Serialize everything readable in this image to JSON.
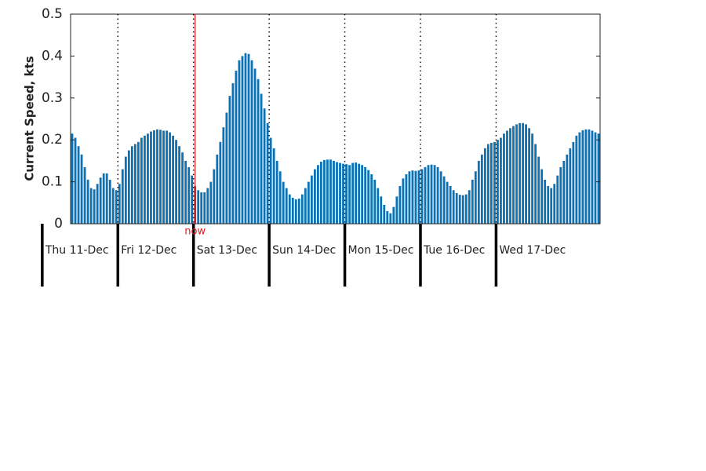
{
  "chart_data": {
    "type": "bar",
    "ylabel": "Current Speed, kts",
    "color": "#0b72b5",
    "values": [
      0.215,
      0.205,
      0.185,
      0.165,
      0.135,
      0.105,
      0.085,
      0.082,
      0.095,
      0.11,
      0.12,
      0.12,
      0.105,
      0.085,
      0.08,
      0.095,
      0.13,
      0.16,
      0.175,
      0.185,
      0.19,
      0.195,
      0.205,
      0.21,
      0.215,
      0.22,
      0.223,
      0.225,
      0.224,
      0.222,
      0.222,
      0.218,
      0.21,
      0.2,
      0.185,
      0.17,
      0.15,
      0.135,
      0.115,
      0.09,
      0.08,
      0.075,
      0.075,
      0.085,
      0.1,
      0.13,
      0.165,
      0.195,
      0.23,
      0.265,
      0.305,
      0.335,
      0.365,
      0.39,
      0.4,
      0.407,
      0.405,
      0.39,
      0.37,
      0.345,
      0.31,
      0.275,
      0.24,
      0.205,
      0.18,
      0.15,
      0.125,
      0.1,
      0.085,
      0.07,
      0.062,
      0.058,
      0.06,
      0.07,
      0.085,
      0.1,
      0.115,
      0.13,
      0.14,
      0.148,
      0.152,
      0.153,
      0.153,
      0.15,
      0.147,
      0.145,
      0.143,
      0.142,
      0.14,
      0.145,
      0.146,
      0.143,
      0.14,
      0.135,
      0.128,
      0.118,
      0.105,
      0.085,
      0.065,
      0.045,
      0.03,
      0.025,
      0.04,
      0.065,
      0.09,
      0.108,
      0.118,
      0.125,
      0.127,
      0.126,
      0.127,
      0.13,
      0.135,
      0.14,
      0.141,
      0.14,
      0.135,
      0.125,
      0.113,
      0.1,
      0.09,
      0.08,
      0.073,
      0.069,
      0.068,
      0.07,
      0.08,
      0.105,
      0.125,
      0.15,
      0.165,
      0.18,
      0.19,
      0.193,
      0.195,
      0.2,
      0.205,
      0.215,
      0.222,
      0.228,
      0.233,
      0.237,
      0.24,
      0.24,
      0.237,
      0.228,
      0.215,
      0.19,
      0.16,
      0.13,
      0.105,
      0.09,
      0.085,
      0.095,
      0.115,
      0.135,
      0.15,
      0.165,
      0.18,
      0.195,
      0.21,
      0.218,
      0.223,
      0.225,
      0.225,
      0.222,
      0.218,
      0.215
    ],
    "xlim": [
      0,
      168
    ],
    "xticks": [
      {
        "value": -9,
        "label": "Thu 11-Dec"
      },
      {
        "value": 15,
        "label": "Fri 12-Dec"
      },
      {
        "value": 39,
        "label": "Sat 13-Dec"
      },
      {
        "value": 63,
        "label": "Sun 14-Dec"
      },
      {
        "value": 87,
        "label": "Mon 15-Dec"
      },
      {
        "value": 111,
        "label": "Tue 16-Dec"
      },
      {
        "value": 135,
        "label": "Wed 17-Dec"
      }
    ],
    "now": {
      "x": 39.5,
      "label": "now",
      "color": "#e8141c"
    },
    "ylim": [
      0,
      0.5
    ],
    "yticks": [
      0,
      0.1,
      0.2,
      0.3,
      0.4,
      0.5
    ],
    "grid": true
  }
}
